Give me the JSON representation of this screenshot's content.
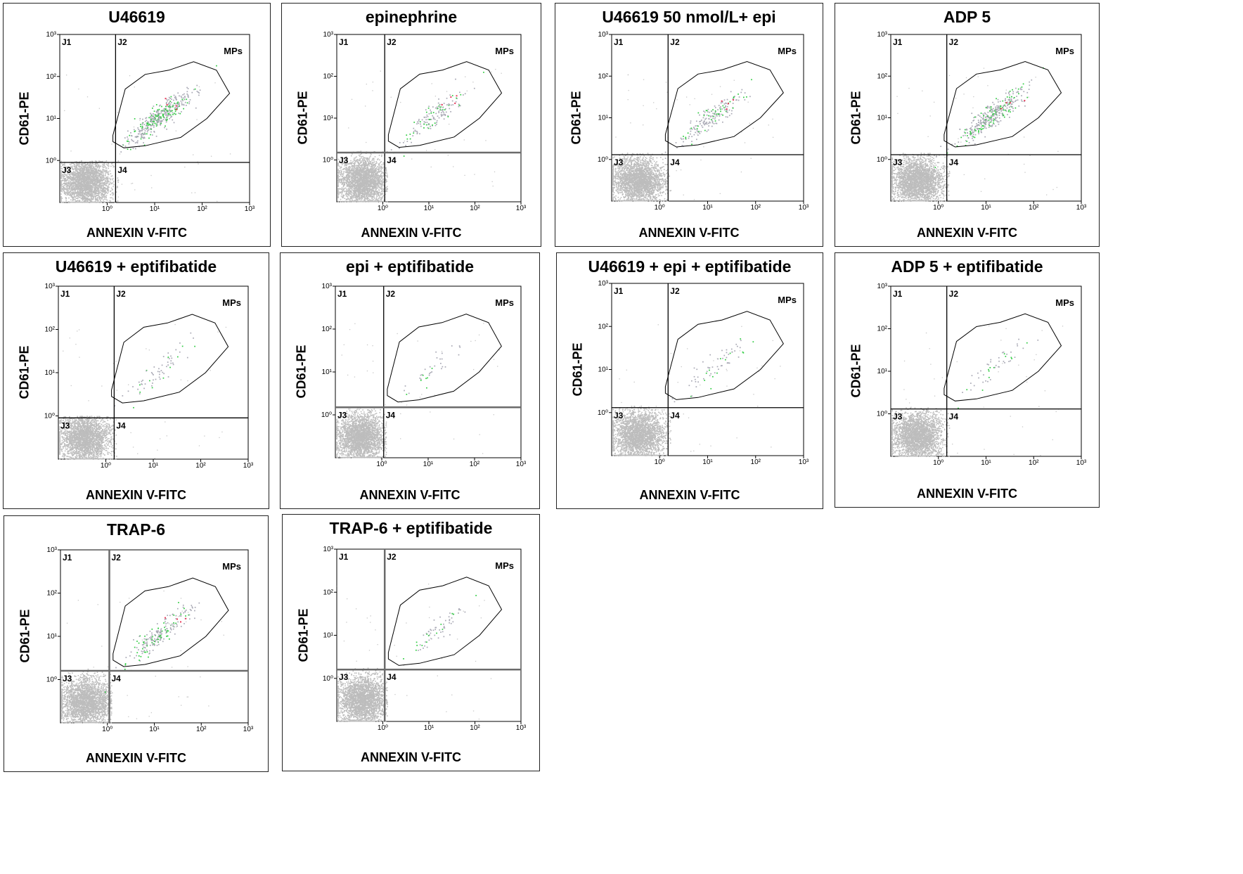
{
  "figure": {
    "xlabel": "ANNEXIN V-FITC",
    "ylabel": "CD61-PE",
    "gate_label": "MPs",
    "quadrant_labels": [
      "J1",
      "J2",
      "J3",
      "J4"
    ],
    "x_tick_labels": [
      "10⁰",
      "10¹",
      "10²",
      "10³"
    ],
    "y_tick_labels": [
      "10⁰",
      "10¹",
      "10²",
      "10³"
    ]
  },
  "chart_data": [
    {
      "type": "scatter",
      "title": "U46619",
      "xlabel": "ANNEXIN V-FITC",
      "ylabel": "CD61-PE",
      "scale": "log",
      "xlim": [
        0.1,
        1000
      ],
      "ylim": [
        0.1,
        1000
      ],
      "quadrant_split": {
        "x": 1.5,
        "y": 0.9
      },
      "gate": "MPs",
      "intensity": 1.0,
      "thick_lines": false,
      "rounded_axis": false
    },
    {
      "type": "scatter",
      "title": "epinephrine",
      "xlabel": "ANNEXIN V-FITC",
      "ylabel": "CD61-PE",
      "scale": "log",
      "xlim": [
        0.1,
        1000
      ],
      "ylim": [
        0.1,
        1000
      ],
      "quadrant_split": {
        "x": 1.1,
        "y": 1.5
      },
      "gate": "MPs",
      "intensity": 0.35,
      "thick_lines": false,
      "rounded_axis": false
    },
    {
      "type": "scatter",
      "title": "U46619 50 nmol/L+ epi",
      "xlabel": "ANNEXIN V-FITC",
      "ylabel": "CD61-PE",
      "scale": "log",
      "xlim": [
        0.1,
        1000
      ],
      "ylim": [
        0.1,
        1000
      ],
      "quadrant_split": {
        "x": 1.5,
        "y": 1.3
      },
      "gate": "MPs",
      "intensity": 0.45,
      "thick_lines": false,
      "rounded_axis": false
    },
    {
      "type": "scatter",
      "title": "ADP 5",
      "xlabel": "ANNEXIN V-FITC",
      "ylabel": "CD61-PE",
      "scale": "log",
      "xlim": [
        0.1,
        1000
      ],
      "ylim": [
        0.1,
        1000
      ],
      "quadrant_split": {
        "x": 1.5,
        "y": 1.3
      },
      "gate": "MPs",
      "intensity": 0.9,
      "thick_lines": false,
      "rounded_axis": false
    },
    {
      "type": "scatter",
      "title": "U46619 + eptifibatide",
      "xlabel": "ANNEXIN V-FITC",
      "ylabel": "CD61-PE",
      "scale": "log",
      "xlim": [
        0.1,
        1000
      ],
      "ylim": [
        0.1,
        1000
      ],
      "quadrant_split": {
        "x": 1.5,
        "y": 0.9
      },
      "gate": "MPs",
      "intensity": 0.15,
      "thick_lines": false,
      "rounded_axis": false
    },
    {
      "type": "scatter",
      "title": "epi + eptifibatide",
      "xlabel": "ANNEXIN V-FITC",
      "ylabel": "CD61-PE",
      "scale": "log",
      "xlim": [
        0.1,
        1000
      ],
      "ylim": [
        0.1,
        1000
      ],
      "quadrant_split": {
        "x": 1.1,
        "y": 1.5
      },
      "gate": "MPs",
      "intensity": 0.08,
      "thick_lines": false,
      "rounded_axis": false
    },
    {
      "type": "scatter",
      "title": "U46619 + epi + eptifibatide",
      "xlabel": "ANNEXIN V-FITC",
      "ylabel": "CD61-PE",
      "scale": "log",
      "xlim": [
        0.1,
        1000
      ],
      "ylim": [
        0.1,
        1000
      ],
      "quadrant_split": {
        "x": 1.5,
        "y": 1.3
      },
      "gate": "MPs",
      "intensity": 0.15,
      "thick_lines": false,
      "rounded_axis": false
    },
    {
      "type": "scatter",
      "title": "ADP 5 + eptifibatide",
      "xlabel": "ANNEXIN V-FITC",
      "ylabel": "CD61-PE",
      "scale": "log",
      "xlim": [
        0.1,
        1000
      ],
      "ylim": [
        0.1,
        1000
      ],
      "quadrant_split": {
        "x": 1.5,
        "y": 1.3
      },
      "gate": "MPs",
      "intensity": 0.12,
      "thick_lines": false,
      "rounded_axis": false
    },
    {
      "type": "scatter",
      "title": "TRAP-6",
      "xlabel": "ANNEXIN V-FITC",
      "ylabel": "CD61-PE",
      "scale": "log",
      "xlim": [
        0.1,
        1000
      ],
      "ylim": [
        0.1,
        1000
      ],
      "quadrant_split": {
        "x": 1.1,
        "y": 1.6
      },
      "gate": "MPs",
      "intensity": 0.5,
      "thick_lines": true,
      "rounded_axis": true
    },
    {
      "type": "scatter",
      "title": "TRAP-6 + eptifibatide",
      "xlabel": "ANNEXIN V-FITC",
      "ylabel": "CD61-PE",
      "scale": "log",
      "xlim": [
        0.1,
        1000
      ],
      "ylim": [
        0.1,
        1000
      ],
      "quadrant_split": {
        "x": 1.1,
        "y": 1.6
      },
      "gate": "MPs",
      "intensity": 0.15,
      "thick_lines": true,
      "rounded_axis": true
    }
  ]
}
